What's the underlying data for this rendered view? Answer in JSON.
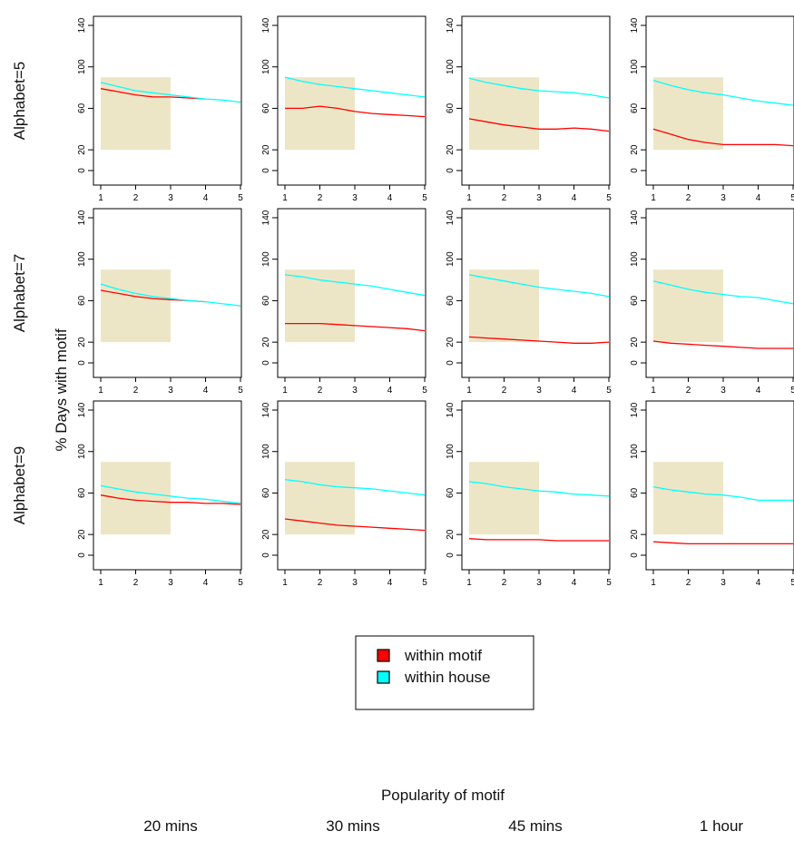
{
  "row_labels": [
    "Alphabet=5",
    "Alphabet=7",
    "Alphabet=9"
  ],
  "col_labels": [
    "20 mins",
    "30 mins",
    "45 mins",
    "1 hour"
  ],
  "y_axis_title": "% Days with motif",
  "x_axis_title": "Popularity of motif",
  "legend": {
    "items": [
      {
        "label": "within motif",
        "color": "#ff0000"
      },
      {
        "label": "within house",
        "color": "#00ffff"
      }
    ]
  },
  "colors": {
    "within_motif": "#ff0000",
    "within_house": "#00ffff",
    "shade": "#ede6c6"
  },
  "chart_data": {
    "type": "line",
    "layout": "faceted grid, 3 rows x 4 columns",
    "x_ticks": [
      1,
      2,
      3,
      4,
      5
    ],
    "y_ticks": [
      0,
      20,
      60,
      100,
      140
    ],
    "xlim": [
      1,
      5
    ],
    "ylim": [
      0,
      140
    ],
    "shaded_region": {
      "x": [
        1,
        3
      ],
      "y": [
        20,
        90
      ]
    },
    "panels": [
      {
        "row": "Alphabet=5",
        "col": "20 mins",
        "series": [
          {
            "name": "within motif",
            "x": [
              1,
              1.5,
              2,
              2.5,
              3,
              3.5,
              4,
              4.5,
              5
            ],
            "values": [
              79,
              76,
              73,
              71,
              71,
              70,
              69,
              null,
              67
            ]
          },
          {
            "name": "within house",
            "x": [
              1,
              1.5,
              2,
              2.5,
              3,
              3.5,
              4,
              4.5,
              5
            ],
            "values": [
              85,
              81,
              77,
              75,
              73,
              71,
              69,
              68,
              66
            ]
          }
        ]
      },
      {
        "row": "Alphabet=5",
        "col": "30 mins",
        "series": [
          {
            "name": "within motif",
            "x": [
              1,
              1.5,
              2,
              2.5,
              3,
              3.5,
              4,
              4.5,
              5
            ],
            "values": [
              60,
              60,
              62,
              60,
              57,
              55,
              54,
              53,
              52
            ]
          },
          {
            "name": "within house",
            "x": [
              1,
              1.5,
              2,
              2.5,
              3,
              3.5,
              4,
              4.5,
              5
            ],
            "values": [
              90,
              86,
              83,
              81,
              79,
              77,
              75,
              73,
              71
            ]
          }
        ]
      },
      {
        "row": "Alphabet=5",
        "col": "45 mins",
        "series": [
          {
            "name": "within motif",
            "x": [
              1,
              1.5,
              2,
              2.5,
              3,
              3.5,
              4,
              4.5,
              5
            ],
            "values": [
              50,
              47,
              44,
              42,
              40,
              40,
              41,
              40,
              38
            ]
          },
          {
            "name": "within house",
            "x": [
              1,
              1.5,
              2,
              2.5,
              3,
              3.5,
              4,
              4.5,
              5
            ],
            "values": [
              89,
              85,
              82,
              79,
              77,
              76,
              75,
              73,
              70
            ]
          }
        ]
      },
      {
        "row": "Alphabet=5",
        "col": "1 hour",
        "series": [
          {
            "name": "within motif",
            "x": [
              1,
              1.5,
              2,
              2.5,
              3,
              3.5,
              4,
              4.5,
              5
            ],
            "values": [
              40,
              35,
              30,
              27,
              25,
              25,
              25,
              25,
              24
            ]
          },
          {
            "name": "within house",
            "x": [
              1,
              1.5,
              2,
              2.5,
              3,
              3.5,
              4,
              4.5,
              5
            ],
            "values": [
              87,
              82,
              78,
              75,
              73,
              70,
              67,
              65,
              63
            ]
          }
        ]
      },
      {
        "row": "Alphabet=7",
        "col": "20 mins",
        "series": [
          {
            "name": "within motif",
            "x": [
              1,
              1.5,
              2,
              2.5,
              3,
              3.5,
              4
            ],
            "values": [
              70,
              67,
              64,
              62,
              61,
              60,
              59
            ]
          },
          {
            "name": "within house",
            "x": [
              1,
              1.5,
              2,
              2.5,
              3,
              3.5,
              4,
              4.5,
              5
            ],
            "values": [
              76,
              71,
              67,
              64,
              62,
              60,
              59,
              57,
              55
            ]
          }
        ]
      },
      {
        "row": "Alphabet=7",
        "col": "30 mins",
        "series": [
          {
            "name": "within motif",
            "x": [
              1,
              1.5,
              2,
              2.5,
              3,
              3.5,
              4,
              4.5,
              5
            ],
            "values": [
              38,
              38,
              38,
              37,
              36,
              35,
              34,
              33,
              31
            ]
          },
          {
            "name": "within house",
            "x": [
              1,
              1.5,
              2,
              2.5,
              3,
              3.5,
              4,
              4.5,
              5
            ],
            "values": [
              85,
              83,
              80,
              78,
              76,
              74,
              71,
              68,
              65
            ]
          }
        ]
      },
      {
        "row": "Alphabet=7",
        "col": "45 mins",
        "series": [
          {
            "name": "within motif",
            "x": [
              1,
              1.5,
              2,
              2.5,
              3,
              3.5,
              4,
              4.5,
              5
            ],
            "values": [
              25,
              24,
              23,
              22,
              21,
              20,
              19,
              19,
              20
            ]
          },
          {
            "name": "within house",
            "x": [
              1,
              1.5,
              2,
              2.5,
              3,
              3.5,
              4,
              4.5,
              5
            ],
            "values": [
              85,
              82,
              79,
              76,
              73,
              71,
              69,
              67,
              64
            ]
          }
        ]
      },
      {
        "row": "Alphabet=7",
        "col": "1 hour",
        "series": [
          {
            "name": "within motif",
            "x": [
              1,
              1.5,
              2,
              2.5,
              3,
              3.5,
              4,
              4.5,
              5
            ],
            "values": [
              21,
              19,
              18,
              17,
              16,
              15,
              14,
              14,
              14
            ]
          },
          {
            "name": "within house",
            "x": [
              1,
              1.5,
              2,
              2.5,
              3,
              3.5,
              4,
              4.5,
              5
            ],
            "values": [
              79,
              75,
              71,
              68,
              66,
              64,
              63,
              60,
              57
            ]
          }
        ]
      },
      {
        "row": "Alphabet=9",
        "col": "20 mins",
        "series": [
          {
            "name": "within motif",
            "x": [
              1,
              1.5,
              2,
              2.5,
              3,
              3.5,
              4,
              4.5,
              5
            ],
            "values": [
              58,
              55,
              53,
              52,
              51,
              51,
              50,
              50,
              49
            ]
          },
          {
            "name": "within house",
            "x": [
              1,
              1.5,
              2,
              2.5,
              3,
              3.5,
              4,
              4.5,
              5
            ],
            "values": [
              67,
              64,
              61,
              59,
              57,
              55,
              54,
              52,
              50
            ]
          }
        ]
      },
      {
        "row": "Alphabet=9",
        "col": "30 mins",
        "series": [
          {
            "name": "within motif",
            "x": [
              1,
              1.5,
              2,
              2.5,
              3,
              3.5,
              4,
              4.5,
              5
            ],
            "values": [
              35,
              33,
              31,
              29,
              28,
              27,
              26,
              25,
              24
            ]
          },
          {
            "name": "within house",
            "x": [
              1,
              1.5,
              2,
              2.5,
              3,
              3.5,
              4,
              4.5,
              5
            ],
            "values": [
              73,
              71,
              68,
              66,
              65,
              64,
              62,
              60,
              58
            ]
          }
        ]
      },
      {
        "row": "Alphabet=9",
        "col": "45 mins",
        "series": [
          {
            "name": "within motif",
            "x": [
              1,
              1.5,
              2,
              2.5,
              3,
              3.5,
              4,
              4.5,
              5
            ],
            "values": [
              16,
              15,
              15,
              15,
              15,
              14,
              14,
              14,
              14
            ]
          },
          {
            "name": "within house",
            "x": [
              1,
              1.5,
              2,
              2.5,
              3,
              3.5,
              4,
              4.5,
              5
            ],
            "values": [
              71,
              69,
              66,
              64,
              62,
              61,
              59,
              58,
              57
            ]
          }
        ]
      },
      {
        "row": "Alphabet=9",
        "col": "1 hour",
        "series": [
          {
            "name": "within motif",
            "x": [
              1,
              1.5,
              2,
              2.5,
              3,
              3.5,
              4,
              4.5,
              5
            ],
            "values": [
              13,
              12,
              11,
              11,
              11,
              11,
              11,
              11,
              11
            ]
          },
          {
            "name": "within house",
            "x": [
              1,
              1.5,
              2,
              2.5,
              3,
              3.5,
              4,
              4.5,
              5
            ],
            "values": [
              66,
              63,
              61,
              59,
              58,
              56,
              53,
              53,
              53
            ]
          }
        ]
      }
    ]
  }
}
